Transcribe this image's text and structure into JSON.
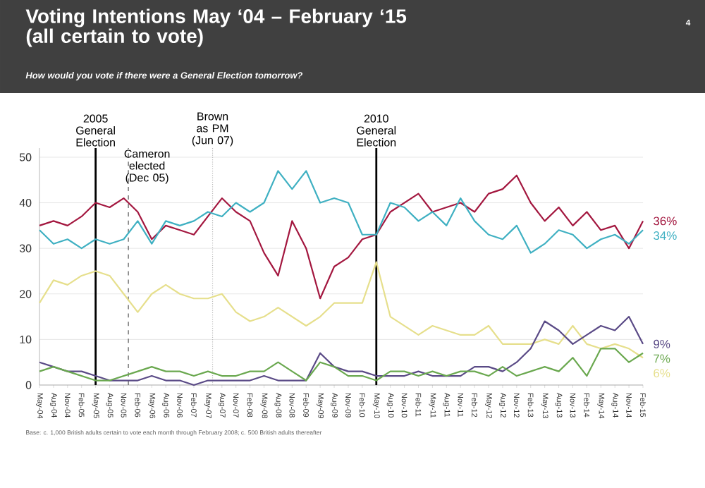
{
  "chart_data": {
    "type": "line",
    "title": "Voting Intentions May ‘04 – February ‘15 (all certain to vote)",
    "subtitle": "How would you vote if there were a General Election tomorrow?",
    "x": [
      "2004-05",
      "2004-08",
      "2004-11",
      "2005-02",
      "2005-05",
      "2005-08",
      "2005-11",
      "2006-02",
      "2006-05",
      "2006-08",
      "2006-11",
      "2007-02",
      "2007-05",
      "2007-08",
      "2007-11",
      "2008-02",
      "2008-05",
      "2008-08",
      "2008-11",
      "2009-02",
      "2009-05",
      "2009-08",
      "2009-11",
      "2010-02",
      "2010-05",
      "2010-08",
      "2010-11",
      "2011-02",
      "2011-05",
      "2011-08",
      "2011-11",
      "2012-02",
      "2012-05",
      "2012-08",
      "2012-11",
      "2013-02",
      "2013-05",
      "2013-08",
      "2013-11",
      "2014-02",
      "2014-05",
      "2014-08",
      "2014-11",
      "2015-02"
    ],
    "xlim": [
      "2004-05",
      "2015-02"
    ],
    "xticks": [
      {
        "value": "2004-05",
        "label": "May-04"
      },
      {
        "value": "2004-08",
        "label": "Aug-04"
      },
      {
        "value": "2004-11",
        "label": "Nov-04"
      },
      {
        "value": "2005-02",
        "label": "Feb-05"
      },
      {
        "value": "2005-05",
        "label": "May-05"
      },
      {
        "value": "2005-08",
        "label": "Aug-05"
      },
      {
        "value": "2005-11",
        "label": "Nov-05"
      },
      {
        "value": "2006-02",
        "label": "Feb-06"
      },
      {
        "value": "2006-05",
        "label": "May-06"
      },
      {
        "value": "2006-08",
        "label": "Aug-06"
      },
      {
        "value": "2006-11",
        "label": "Nov-06"
      },
      {
        "value": "2007-02",
        "label": "Feb-07"
      },
      {
        "value": "2007-05",
        "label": "May-07"
      },
      {
        "value": "2007-08",
        "label": "Aug-07"
      },
      {
        "value": "2007-11",
        "label": "Nov-07"
      },
      {
        "value": "2008-02",
        "label": "Feb-08"
      },
      {
        "value": "2008-05",
        "label": "May-08"
      },
      {
        "value": "2008-08",
        "label": "Aug-08"
      },
      {
        "value": "2008-11",
        "label": "Nov-08"
      },
      {
        "value": "2009-02",
        "label": "Feb-09"
      },
      {
        "value": "2009-05",
        "label": "May-09"
      },
      {
        "value": "2009-08",
        "label": "Aug-09"
      },
      {
        "value": "2009-11",
        "label": "Nov-09"
      },
      {
        "value": "2010-02",
        "label": "Feb-10"
      },
      {
        "value": "2010-05",
        "label": "May-10"
      },
      {
        "value": "2010-08",
        "label": "Aug-10"
      },
      {
        "value": "2010-11",
        "label": "Nov-10"
      },
      {
        "value": "2011-02",
        "label": "Feb-11"
      },
      {
        "value": "2011-05",
        "label": "May-11"
      },
      {
        "value": "2011-08",
        "label": "Aug-11"
      },
      {
        "value": "2011-11",
        "label": "Nov-11"
      },
      {
        "value": "2012-02",
        "label": "Feb-12"
      },
      {
        "value": "2012-05",
        "label": "May-12"
      },
      {
        "value": "2012-08",
        "label": "Aug-12"
      },
      {
        "value": "2012-11",
        "label": "Nov-12"
      },
      {
        "value": "2013-02",
        "label": "Feb-13"
      },
      {
        "value": "2013-05",
        "label": "May-13"
      },
      {
        "value": "2013-08",
        "label": "Aug-13"
      },
      {
        "value": "2013-11",
        "label": "Nov-13"
      },
      {
        "value": "2014-02",
        "label": "Feb-14"
      },
      {
        "value": "2014-05",
        "label": "May-14"
      },
      {
        "value": "2014-08",
        "label": "Aug-14"
      },
      {
        "value": "2014-11",
        "label": "Nov-14"
      },
      {
        "value": "2015-02",
        "label": "Feb-15"
      }
    ],
    "ylim": [
      0,
      52
    ],
    "yticks": [
      0,
      10,
      20,
      30,
      40,
      50
    ],
    "grid": "y",
    "series": [
      {
        "color": "#a3173f",
        "values": [
          35,
          36,
          35,
          37,
          40,
          39,
          41,
          38,
          32,
          35,
          34,
          33,
          37,
          41,
          38,
          36,
          29,
          24,
          36,
          30,
          19,
          26,
          28,
          32,
          33,
          38,
          40,
          42,
          38,
          39,
          40,
          38,
          42,
          43,
          46,
          40,
          36,
          39,
          35,
          38,
          34,
          35,
          30,
          36
        ],
        "value_labels": [
          null,
          null,
          null,
          null,
          null,
          null,
          null,
          null,
          null,
          null,
          null,
          null,
          null,
          null,
          null,
          null,
          null,
          null,
          null,
          null,
          null,
          null,
          null,
          null,
          null,
          null,
          null,
          null,
          null,
          null,
          null,
          null,
          null,
          null,
          null,
          null,
          null,
          null,
          null,
          null,
          null,
          null,
          null,
          "36%"
        ]
      },
      {
        "color": "#3fb0c2",
        "values": [
          34,
          31,
          32,
          30,
          32,
          31,
          32,
          36,
          31,
          36,
          35,
          36,
          38,
          37,
          40,
          38,
          40,
          47,
          43,
          47,
          40,
          41,
          40,
          33,
          33,
          40,
          39,
          36,
          38,
          35,
          41,
          36,
          33,
          32,
          35,
          29,
          31,
          34,
          33,
          30,
          32,
          33,
          31,
          34
        ],
        "value_labels": [
          null,
          null,
          null,
          null,
          null,
          null,
          null,
          null,
          null,
          null,
          null,
          null,
          null,
          null,
          null,
          null,
          null,
          null,
          null,
          null,
          null,
          null,
          null,
          null,
          null,
          null,
          null,
          null,
          null,
          null,
          null,
          null,
          null,
          null,
          null,
          null,
          null,
          null,
          null,
          null,
          null,
          null,
          null,
          "34%"
        ]
      },
      {
        "color": "#e6df8c",
        "values": [
          18,
          23,
          22,
          24,
          25,
          24,
          20,
          16,
          20,
          22,
          20,
          19,
          19,
          20,
          16,
          14,
          15,
          17,
          15,
          13,
          15,
          18,
          18,
          18,
          27,
          15,
          13,
          11,
          13,
          12,
          11,
          11,
          13,
          9,
          9,
          9,
          10,
          9,
          13,
          9,
          8,
          9,
          8,
          6
        ],
        "value_labels": [
          null,
          null,
          null,
          null,
          null,
          null,
          null,
          null,
          null,
          null,
          null,
          null,
          null,
          null,
          null,
          null,
          null,
          null,
          null,
          null,
          null,
          null,
          null,
          null,
          null,
          null,
          null,
          null,
          null,
          null,
          null,
          null,
          null,
          null,
          null,
          null,
          null,
          null,
          null,
          null,
          null,
          null,
          null,
          "6%"
        ]
      },
      {
        "color": "#5a4a86",
        "values": [
          5,
          4,
          3,
          3,
          2,
          1,
          1,
          1,
          2,
          1,
          1,
          0,
          1,
          1,
          1,
          1,
          2,
          1,
          1,
          1,
          7,
          4,
          3,
          3,
          2,
          2,
          2,
          3,
          2,
          2,
          2,
          4,
          4,
          3,
          5,
          8,
          14,
          12,
          9,
          11,
          13,
          12,
          15,
          9
        ],
        "value_labels": [
          null,
          null,
          null,
          null,
          null,
          null,
          null,
          null,
          null,
          null,
          null,
          null,
          null,
          null,
          null,
          null,
          null,
          null,
          null,
          null,
          null,
          null,
          null,
          null,
          null,
          null,
          null,
          null,
          null,
          null,
          null,
          null,
          null,
          null,
          null,
          null,
          null,
          null,
          null,
          null,
          null,
          null,
          null,
          "9%"
        ]
      },
      {
        "color": "#6aa84f",
        "values": [
          3,
          4,
          3,
          2,
          1,
          1,
          2,
          3,
          4,
          3,
          3,
          2,
          3,
          2,
          2,
          3,
          3,
          5,
          3,
          1,
          5,
          4,
          2,
          2,
          1,
          3,
          3,
          2,
          3,
          2,
          3,
          3,
          2,
          4,
          2,
          3,
          4,
          3,
          6,
          2,
          8,
          8,
          5,
          7
        ],
        "value_labels": [
          null,
          null,
          null,
          null,
          null,
          null,
          null,
          null,
          null,
          null,
          null,
          null,
          null,
          null,
          null,
          null,
          null,
          null,
          null,
          null,
          null,
          null,
          null,
          null,
          null,
          null,
          null,
          null,
          null,
          null,
          null,
          null,
          null,
          null,
          null,
          null,
          null,
          null,
          null,
          null,
          null,
          null,
          null,
          "7%"
        ]
      }
    ],
    "ref_lines": [
      {
        "axis": "x",
        "value": "2005-05",
        "label": "2005 General Election",
        "color": "#000000",
        "line_style": "solid"
      },
      {
        "axis": "x",
        "value": "2005-12",
        "label": "Cameron elected (Dec 05)",
        "color": "#555555",
        "line_style": "dashed"
      },
      {
        "axis": "x",
        "value": "2007-06",
        "label": "Brown as PM (Jun 07)",
        "color": "#bbbbbb",
        "line_style": "dotted"
      },
      {
        "axis": "x",
        "value": "2010-05",
        "label": "2010 General Election",
        "color": "#000000",
        "line_style": "solid"
      }
    ],
    "annotations": [
      "4",
      "Base: c. 1,000 British adults certain to vote each month through February 2008; c. 500 British adults thereafter"
    ]
  }
}
